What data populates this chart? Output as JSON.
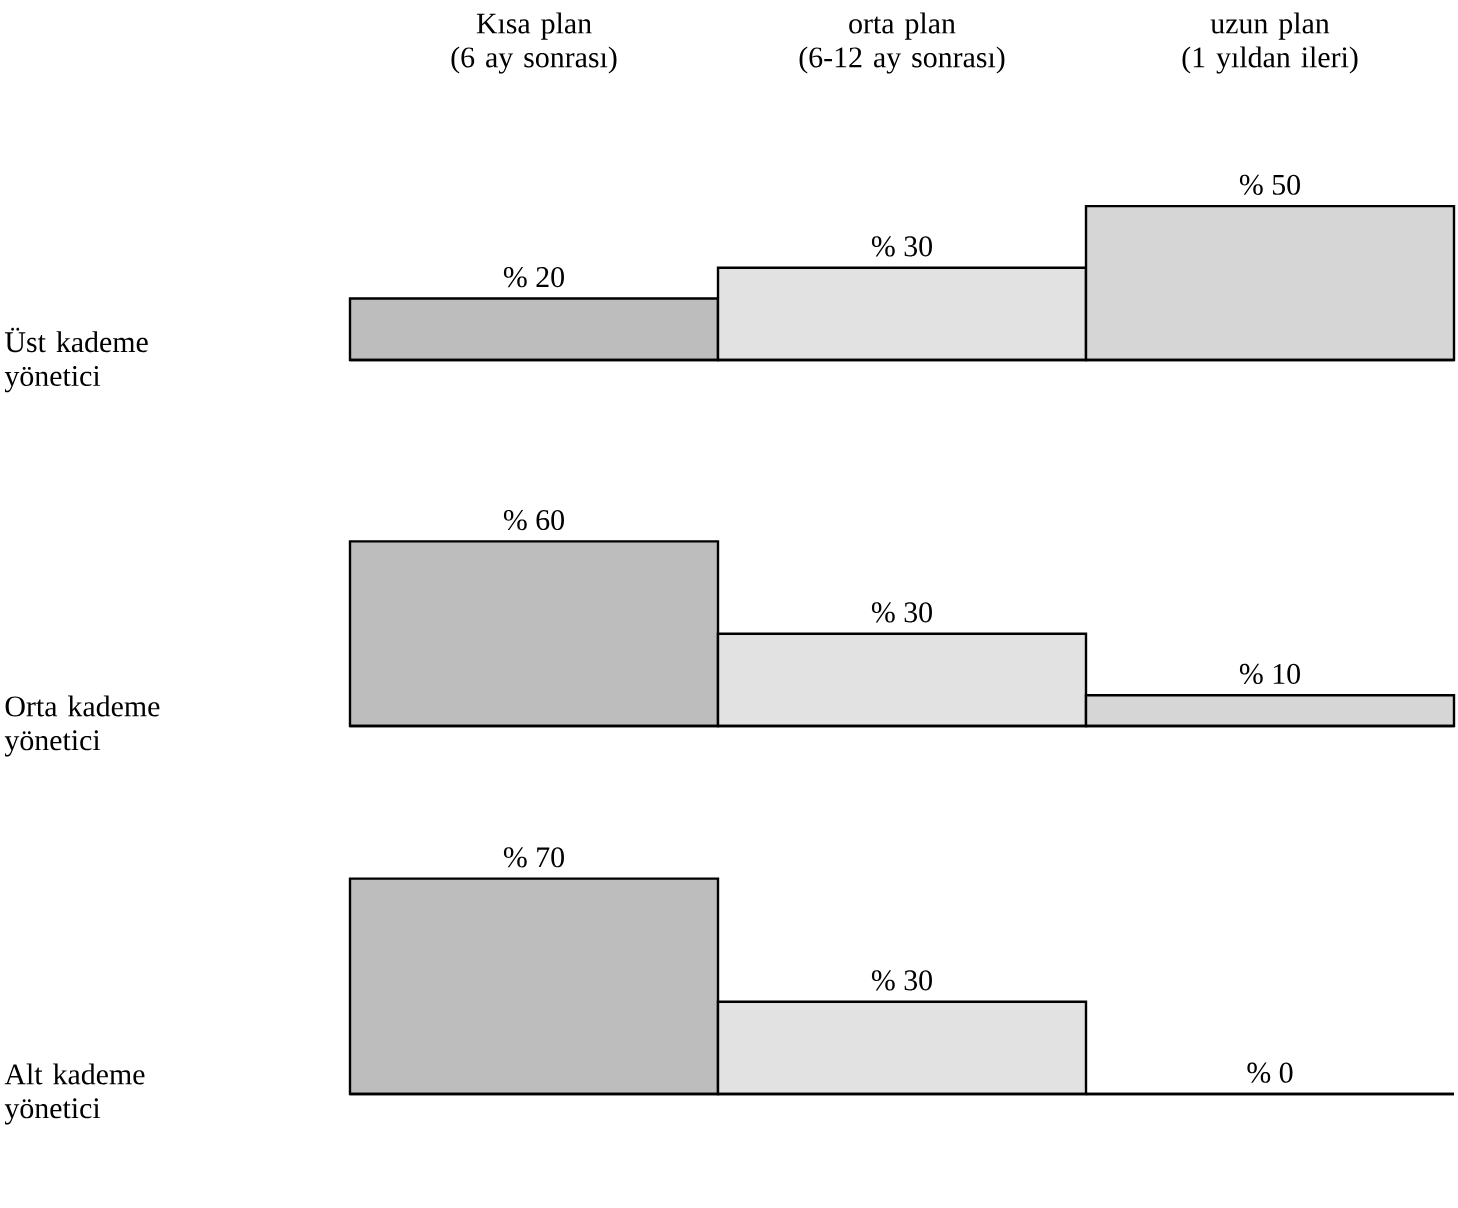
{
  "chart_data": [
    {
      "type": "bar",
      "ylabel": "Üst kademe yönetici",
      "categories": [
        "Kısa plan\n(6 ay sonrası)",
        "orta plan\n(6-12 ay sonrası)",
        "uzun plan\n(1 yıldan ileri)"
      ],
      "values": [
        20,
        30,
        50
      ],
      "value_labels": [
        "% 20",
        "% 30",
        "% 50"
      ],
      "colors": [
        "#bdbdbd",
        "#e2e2e2",
        "#d6d6d6"
      ],
      "tick_labels": "x"
    },
    {
      "type": "bar",
      "ylabel": "Orta kademe yönetici",
      "categories": [
        null,
        null,
        null
      ],
      "values": [
        60,
        30,
        10
      ],
      "value_labels": [
        "% 60",
        "% 30",
        "% 10"
      ],
      "colors": [
        "#bdbdbd",
        "#e2e2e2",
        "#d6d6d6"
      ],
      "tick_labels": false
    },
    {
      "type": "bar",
      "ylabel": "Alt kademe yönetici",
      "categories": [
        null,
        null,
        null
      ],
      "values": [
        70,
        30,
        0
      ],
      "value_labels": [
        "% 70",
        "% 30",
        "% 0"
      ],
      "colors": [
        "#bdbdbd",
        "#e2e2e2",
        "#d6d6d6"
      ],
      "tick_labels": false
    }
  ]
}
